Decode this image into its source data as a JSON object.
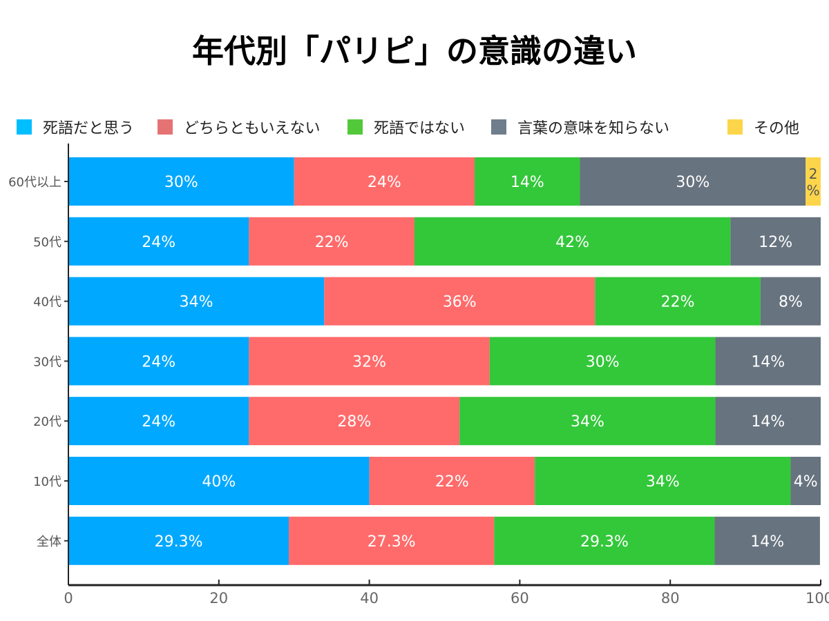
{
  "chart_data": {
    "type": "bar",
    "orientation": "horizontal",
    "stacked": true,
    "title": "年代別「パリピ」の意識の違い",
    "xlabel": "",
    "ylabel": "",
    "xlim": [
      0,
      100
    ],
    "xticks": [
      "0",
      "20",
      "40",
      "60",
      "80",
      "100"
    ],
    "grid": false,
    "legend_position": "top",
    "categories": [
      "60代以上",
      "50代",
      "40代",
      "30代",
      "20代",
      "10代",
      "全体"
    ],
    "series": [
      {
        "name": "死語だと思う",
        "color": "#00a8ff",
        "values": [
          30,
          24,
          34,
          24,
          24,
          40,
          29.3
        ],
        "labels": [
          "30%",
          "24%",
          "34%",
          "24%",
          "24%",
          "40%",
          "29.3%"
        ]
      },
      {
        "name": "どちらともいえない",
        "color": "#ff6b6b",
        "values": [
          24,
          22,
          36,
          32,
          28,
          22,
          27.3
        ],
        "labels": [
          "24%",
          "22%",
          "36%",
          "32%",
          "28%",
          "22%",
          "27.3%"
        ]
      },
      {
        "name": "死語ではない",
        "color": "#33c73a",
        "values": [
          14,
          42,
          22,
          30,
          34,
          34,
          29.3
        ],
        "labels": [
          "14%",
          "42%",
          "22%",
          "30%",
          "34%",
          "34%",
          "29.3%"
        ]
      },
      {
        "name": "言葉の意味を知らない",
        "color": "#67737f",
        "values": [
          30,
          12,
          8,
          14,
          14,
          4,
          14
        ],
        "labels": [
          "30%",
          "12%",
          "8%",
          "14%",
          "14%",
          "4%",
          "14%"
        ]
      },
      {
        "name": "その他",
        "color": "#fdd54a",
        "values": [
          2,
          0,
          0,
          0,
          0,
          0,
          0
        ],
        "labels": [
          "2\n%",
          "",
          "",
          "",
          "",
          "",
          ""
        ]
      }
    ]
  },
  "legend_swatch_colors": [
    "#00bfff",
    "#e57373",
    "#52c93a",
    "#6f7d8c",
    "#fdd54a"
  ]
}
